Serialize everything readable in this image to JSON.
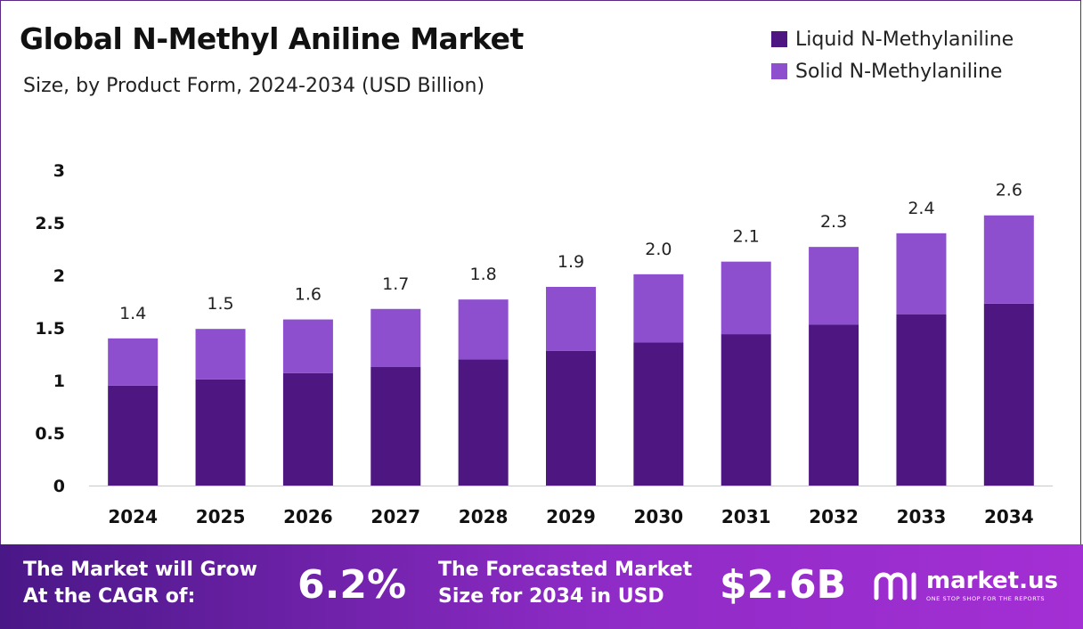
{
  "header": {
    "title": "Global N-Methyl Aniline Market",
    "subtitle": "Size, by Product Form, 2024-2034 (USD Billion)"
  },
  "legend": [
    {
      "label": "Liquid N-Methylaniline",
      "color": "#4d1681"
    },
    {
      "label": "Solid N-Methylaniline",
      "color": "#8e4fcf"
    }
  ],
  "chart_data": {
    "type": "bar",
    "stacked": true,
    "categories": [
      "2024",
      "2025",
      "2026",
      "2027",
      "2028",
      "2029",
      "2030",
      "2031",
      "2032",
      "2033",
      "2034"
    ],
    "series": [
      {
        "name": "Liquid N-Methylaniline",
        "color": "#4d1681",
        "values": [
          0.95,
          1.01,
          1.07,
          1.13,
          1.2,
          1.28,
          1.36,
          1.44,
          1.53,
          1.63,
          1.73
        ]
      },
      {
        "name": "Solid N-Methylaniline",
        "color": "#8e4fcf",
        "values": [
          0.45,
          0.48,
          0.51,
          0.55,
          0.57,
          0.61,
          0.65,
          0.69,
          0.74,
          0.77,
          0.84
        ]
      }
    ],
    "totals": [
      "1.4",
      "1.5",
      "1.6",
      "1.7",
      "1.8",
      "1.9",
      "2.0",
      "2.1",
      "2.3",
      "2.4",
      "2.6"
    ],
    "yticks": [
      "0",
      "0.5",
      "1",
      "1.5",
      "2",
      "2.5",
      "3"
    ],
    "ylim": [
      0,
      3
    ],
    "grid": false,
    "legend_position": "top-right"
  },
  "footer": {
    "cagr_line1": "The Market will Grow",
    "cagr_line2": "At the CAGR of:",
    "cagr_value": "6.2%",
    "forecast_line1": "The Forecasted Market",
    "forecast_line2": "Size for 2034 in USD",
    "forecast_value": "$2.6B",
    "brand_name": "market.us",
    "brand_tagline": "ONE STOP SHOP FOR THE REPORTS"
  }
}
